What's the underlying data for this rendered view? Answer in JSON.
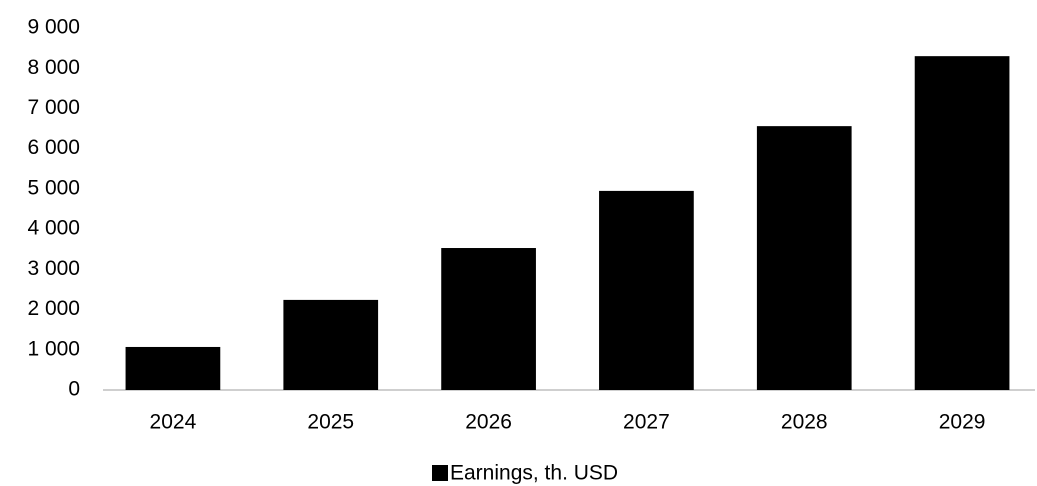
{
  "chart_data": {
    "type": "bar",
    "categories": [
      "2024",
      "2025",
      "2026",
      "2027",
      "2028",
      "2029"
    ],
    "series": [
      {
        "name": "Earnings, th. USD",
        "color": "#000000",
        "values": [
          1070,
          2240,
          3530,
          4950,
          6560,
          8300
        ]
      }
    ],
    "ylim": [
      0,
      9000
    ],
    "yticks": [
      0,
      {
        "value": 1000,
        "label": "1 000"
      },
      {
        "value": 2000,
        "label": "2 000"
      },
      {
        "value": 3000,
        "label": "3 000"
      },
      {
        "value": 4000,
        "label": "4 000"
      },
      {
        "value": 5000,
        "label": "5 000"
      },
      {
        "value": 6000,
        "label": "6 000"
      },
      {
        "value": 7000,
        "label": "7 000"
      },
      {
        "value": 8000,
        "label": "8 000"
      },
      {
        "value": 9000,
        "label": "9 000"
      }
    ],
    "grid": false,
    "legend": "bottom"
  }
}
